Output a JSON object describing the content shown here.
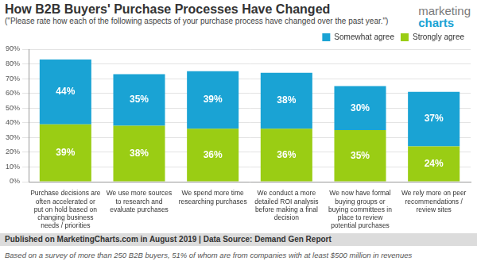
{
  "chart_data": {
    "type": "bar",
    "title": "How B2B Buyers' Purchase Processes Have Changed",
    "subtitle": "(\"Please rate how each of the following aspects of your purchase process have changed over the past year.\")",
    "logo": [
      "marketing",
      "charts"
    ],
    "source": "Published on MarketingCharts.com in August 2019 | Data Source: Demand Gen Report",
    "note": "Based on a survey of more than 250 B2B buyers, 51% of whom are from companies with at least $500 million in revenues",
    "categories": [
      [
        "Purchase decisions are",
        "often accelerated or",
        "put on hold based on",
        "changing business",
        "needs / priorities"
      ],
      [
        "We use more sources",
        "to research and",
        "evaluate purchases"
      ],
      [
        "We spend more time",
        "researching purchases"
      ],
      [
        "We conduct a more",
        "detailed ROI analysis",
        "before making a final",
        "decision"
      ],
      [
        "We now have formal",
        "buying groups or",
        "buying committees in",
        "place to review",
        "potential purchases"
      ],
      [
        "We rely more on peer",
        "recommendations /",
        "review sites"
      ]
    ],
    "series": [
      {
        "name": "Strongly agree",
        "color": "#9acd14",
        "values": [
          39,
          38,
          36,
          36,
          35,
          24
        ],
        "value_labels": [
          "39%",
          "38%",
          "36%",
          "36%",
          "35%",
          "24%"
        ]
      },
      {
        "name": "Somewhat agree",
        "color": "#1aa3d4",
        "values": [
          44,
          35,
          39,
          38,
          30,
          37
        ],
        "value_labels": [
          "44%",
          "35%",
          "39%",
          "38%",
          "30%",
          "37%"
        ]
      }
    ],
    "stacked": true,
    "data_labels": true,
    "grid": true,
    "legend": "top-right",
    "ylim": [
      0,
      90
    ],
    "yticks": [
      {
        "value": 0,
        "label": "0%"
      },
      {
        "value": 10,
        "label": "10%"
      },
      {
        "value": 20,
        "label": "20%"
      },
      {
        "value": 30,
        "label": "30%"
      },
      {
        "value": 40,
        "label": "40%"
      },
      {
        "value": 50,
        "label": "50%"
      },
      {
        "value": 60,
        "label": "60%"
      },
      {
        "value": 70,
        "label": "70%"
      },
      {
        "value": 80,
        "label": "80%"
      },
      {
        "value": 90,
        "label": "90%"
      }
    ]
  }
}
